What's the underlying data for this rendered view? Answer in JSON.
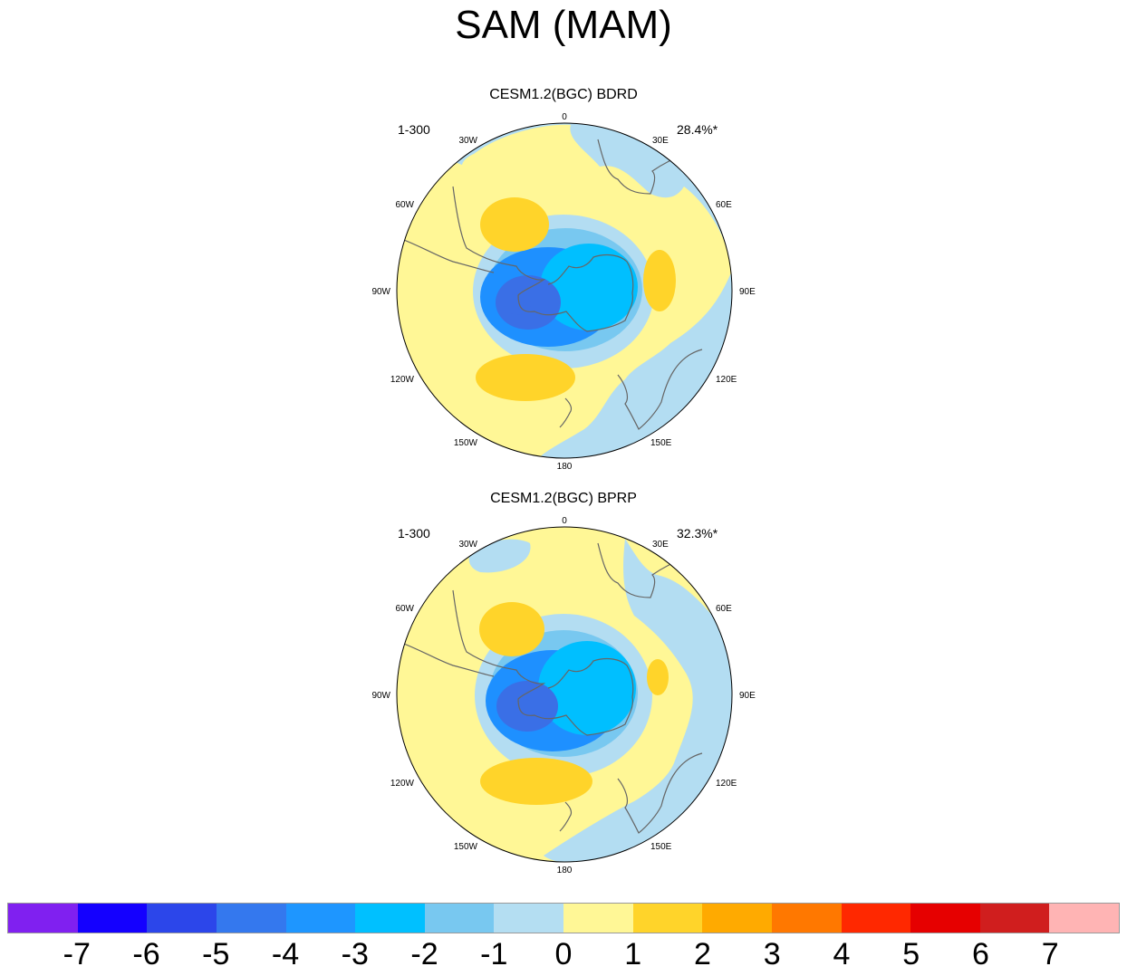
{
  "title": "SAM (MAM)",
  "colors": {
    "pos1": "#fff796",
    "pos2": "#ffd42a",
    "neg1": "#b3ddf2",
    "neg2": "#78c8f0",
    "neg3": "#00bfff",
    "neg4": "#1e90ff",
    "neg5": "#3a6fe6",
    "land_outline": "#666666"
  },
  "panels": [
    {
      "title": "CESM1.2(BGC) BDRD",
      "years": "1-300",
      "variance": "28.4%*"
    },
    {
      "title": "CESM1.2(BGC) BPRP",
      "years": "1-300",
      "variance": "32.3%*"
    }
  ],
  "longitude_labels": [
    "0",
    "30E",
    "60E",
    "90E",
    "120E",
    "150E",
    "180",
    "150W",
    "120W",
    "90W",
    "60W",
    "30W"
  ],
  "colorbar": {
    "colors": [
      "#8020f0",
      "#1400ff",
      "#2c46ea",
      "#3478ee",
      "#1e96ff",
      "#00c0ff",
      "#78c8f0",
      "#b4def2",
      "#fff796",
      "#ffd42a",
      "#ffaa00",
      "#ff7800",
      "#ff2800",
      "#e60000",
      "#d01e1e",
      "#ffb4b4"
    ],
    "labels": [
      "-7",
      "-6",
      "-5",
      "-4",
      "-3",
      "-2",
      "-1",
      "0",
      "1",
      "2",
      "3",
      "4",
      "5",
      "6",
      "7"
    ]
  }
}
